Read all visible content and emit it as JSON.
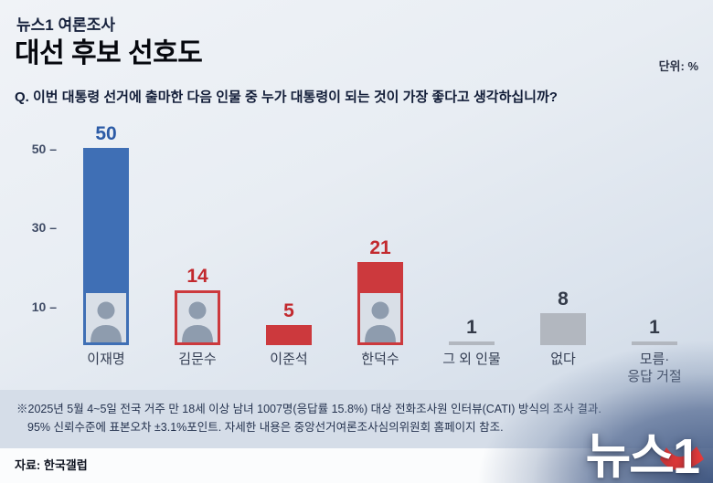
{
  "header": {
    "kicker": "뉴스1 여론조사",
    "title": "대선 후보 선호도",
    "unit": "단위: %",
    "question": "Q. 이번 대통령 선거에 출마한 다음 인물 중 누가 대통령이 되는 것이 가장 좋다고 생각하십니까?"
  },
  "chart_data": {
    "type": "bar",
    "title": "대선 후보 선호도",
    "unit": "%",
    "categories": [
      "이재명",
      "김문수",
      "이준석",
      "한덕수",
      "그 외 인물",
      "없다",
      "모름·\n응답 거절"
    ],
    "values": [
      50,
      14,
      5,
      21,
      1,
      8,
      1
    ],
    "bar_colors": [
      "#3f6fb5",
      "#cc393d",
      "#cc393d",
      "#cc393d",
      "#b2b7bf",
      "#b2b7bf",
      "#b2b7bf"
    ],
    "value_colors": [
      "#2c5ba6",
      "#c2292e",
      "#c2292e",
      "#c2292e",
      "#343b49",
      "#343b49",
      "#343b49"
    ],
    "has_photo": [
      true,
      true,
      false,
      true,
      false,
      false,
      false
    ],
    "yticks": [
      10,
      30,
      50
    ],
    "ylim": [
      0,
      55
    ],
    "grid": false,
    "legend": null
  },
  "footnote": {
    "line1": "※2025년 5월 4~5일 전국 거주 만 18세 이상 남녀 1007명(응답률 15.8%) 대상 전화조사원 인터뷰(CATI) 방식의 조사 결과.",
    "line2": "95% 신뢰수준에 표본오차 ±3.1%포인트. 자세한 내용은 중앙선거여론조사심의위원회 홈페이지 참조."
  },
  "footer": {
    "source": "자료: 한국갤럽",
    "logo": "뉴스1"
  }
}
